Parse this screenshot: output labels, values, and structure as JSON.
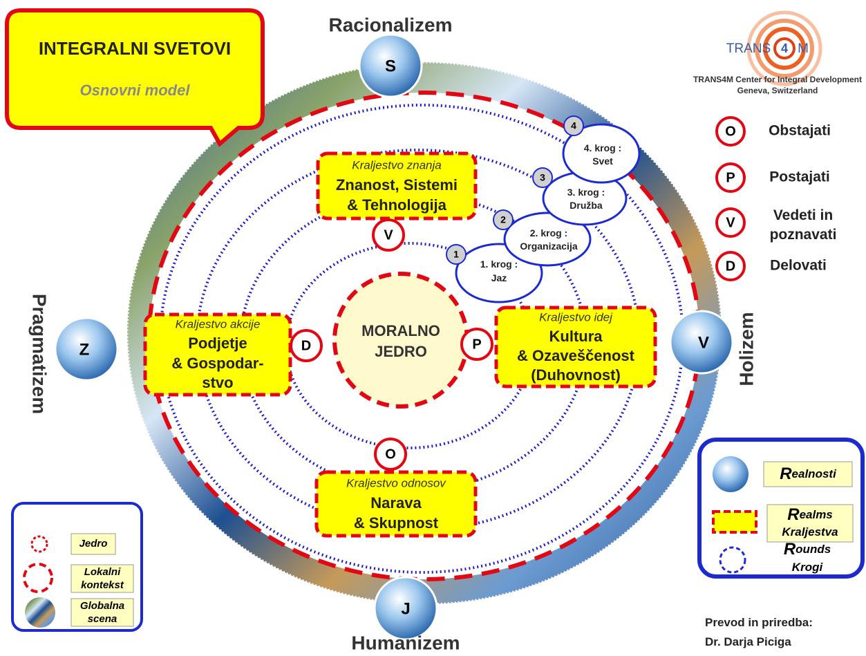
{
  "title": {
    "main": "INTEGRALNI SVETOVI",
    "sub": "Osnovni model"
  },
  "worlds": [
    {
      "letter": "S",
      "label": "Racionalizem"
    },
    {
      "letter": "Z",
      "label": "Pragmatizem"
    },
    {
      "letter": "V",
      "label": "Holizem"
    },
    {
      "letter": "J",
      "label": "Humanizem"
    }
  ],
  "core": [
    "MORALNO",
    "JEDRO"
  ],
  "realms": [
    {
      "kicker": "Kraljestvo znanja",
      "lines": [
        "Znanost, Sistemi",
        "& Tehnologija"
      ]
    },
    {
      "kicker": "Kraljestvo akcije",
      "lines": [
        "Podjetje",
        "& Gospodar-",
        "stvo"
      ]
    },
    {
      "kicker": "Kraljestvo idej",
      "lines": [
        "Kultura",
        "& Ozaveščenost",
        "(Duhovnost)"
      ]
    },
    {
      "kicker": "Kraljestvo odnosov",
      "lines": [
        "Narava",
        "& Skupnost"
      ]
    }
  ],
  "functions": [
    "V",
    "D",
    "P",
    "O"
  ],
  "rounds": [
    {
      "number": "1",
      "lines": [
        "1. krog :",
        "Jaz"
      ]
    },
    {
      "number": "2",
      "lines": [
        "2. krog :",
        "Organizacija"
      ]
    },
    {
      "number": "3",
      "lines": [
        "3. krog :",
        "Družba"
      ]
    },
    {
      "number": "4",
      "lines": [
        "4. krog :",
        "Svet"
      ]
    }
  ],
  "logo": {
    "left": "TRANS",
    "num": "4",
    "right": "M",
    "org": "TRANS4M Center for Integral Development",
    "place": "Geneva, Switzerland"
  },
  "key": [
    {
      "letter": "O",
      "lines": [
        "Obstajati"
      ]
    },
    {
      "letter": "P",
      "lines": [
        "Postajati"
      ]
    },
    {
      "letter": "V",
      "lines": [
        "Vedeti in",
        "poznavati"
      ]
    },
    {
      "letter": "D",
      "lines": [
        "Delovati"
      ]
    }
  ],
  "legend_left": [
    [
      "Jedro"
    ],
    [
      "Lokalni",
      "kontekst"
    ],
    [
      "Globalna",
      "scena"
    ]
  ],
  "legend_right": [
    {
      "initial": "R",
      "rest": "ealnosti"
    },
    {
      "initial": "R",
      "rest": "ealms",
      "second": "Kraljestva"
    },
    {
      "initial": "R",
      "rest": "ounds",
      "second": "Krogi"
    }
  ],
  "credit": [
    "Prevod in priredba:",
    "Dr. Darja Piciga"
  ]
}
